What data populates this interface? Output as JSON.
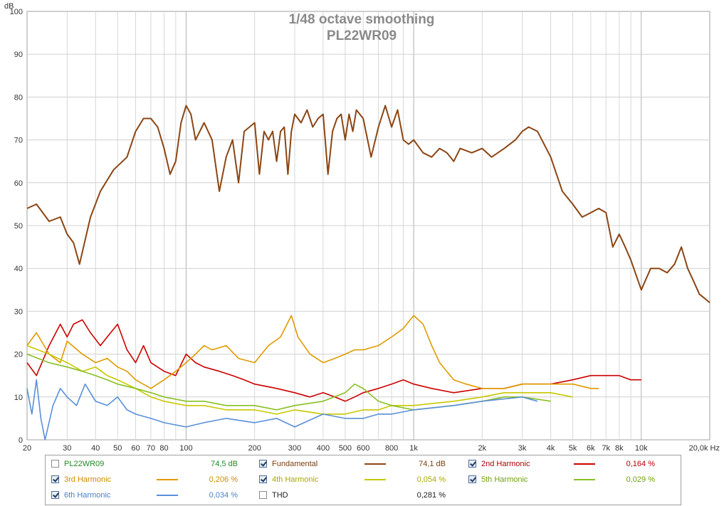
{
  "chart_data": {
    "type": "line",
    "title": "1/48 octave smoothing",
    "subtitle": "PL22WR09",
    "ylabel": "dB",
    "xunit": "Hz",
    "xscale": "log",
    "xlim": [
      20,
      20000
    ],
    "ylim": [
      0,
      100
    ],
    "grid": true,
    "x_tick_labels": [
      "20",
      "30",
      "40",
      "50",
      "60",
      "70",
      "80",
      "100",
      "200",
      "300",
      "400",
      "500",
      "600",
      "800",
      "1k",
      "2k",
      "3k",
      "4k",
      "5k",
      "6k",
      "7k",
      "8k",
      "10k",
      "20,0k Hz"
    ],
    "y_tick_labels": [
      "0",
      "10",
      "20",
      "30",
      "40",
      "50",
      "60",
      "70",
      "80",
      "90",
      "100"
    ],
    "series": [
      {
        "name": "Fundamental",
        "color": "#8b4513",
        "x": [
          20,
          22,
          25,
          28,
          30,
          32,
          34,
          38,
          42,
          48,
          55,
          60,
          65,
          70,
          75,
          80,
          85,
          90,
          95,
          100,
          105,
          110,
          120,
          130,
          140,
          150,
          160,
          170,
          180,
          200,
          210,
          220,
          230,
          240,
          250,
          260,
          270,
          280,
          290,
          300,
          320,
          340,
          360,
          380,
          400,
          420,
          440,
          460,
          480,
          500,
          520,
          540,
          560,
          600,
          650,
          700,
          750,
          800,
          850,
          900,
          950,
          1000,
          1100,
          1200,
          1300,
          1400,
          1500,
          1600,
          1800,
          2000,
          2200,
          2500,
          2800,
          3000,
          3200,
          3500,
          4000,
          4500,
          5000,
          5500,
          6000,
          6500,
          7000,
          7500,
          8000,
          8500,
          9000,
          10000,
          11000,
          12000,
          13000,
          14000,
          15000,
          16000,
          17000,
          18000,
          19000,
          20000
        ],
        "y": [
          54,
          55,
          51,
          52,
          48,
          46,
          41,
          52,
          58,
          63,
          66,
          72,
          75,
          75,
          73,
          68,
          62,
          65,
          74,
          78,
          76,
          70,
          74,
          70,
          58,
          66,
          70,
          60,
          72,
          74,
          62,
          72,
          70,
          72,
          65,
          72,
          73,
          62,
          72,
          76,
          74,
          77,
          73,
          75,
          76,
          62,
          72,
          75,
          76,
          70,
          76,
          72,
          77,
          75,
          66,
          73,
          78,
          73,
          77,
          70,
          69,
          70,
          67,
          66,
          68,
          67,
          65,
          68,
          67,
          68,
          66,
          68,
          70,
          72,
          73,
          72,
          66,
          58,
          55,
          52,
          53,
          54,
          53,
          45,
          48,
          45,
          42,
          35,
          40,
          40,
          39,
          41,
          45,
          40,
          37,
          34,
          33,
          32
        ]
      },
      {
        "name": "2nd Harmonic",
        "color": "#cc0000",
        "x": [
          20,
          22,
          25,
          28,
          30,
          32,
          35,
          38,
          42,
          45,
          50,
          55,
          60,
          65,
          70,
          80,
          90,
          100,
          110,
          120,
          140,
          160,
          180,
          200,
          250,
          300,
          350,
          400,
          450,
          500,
          550,
          600,
          700,
          800,
          900,
          1000,
          1200,
          1500,
          2000,
          2500,
          3000,
          4000,
          5000,
          6000,
          7000,
          8000,
          9000,
          10000
        ],
        "y": [
          18,
          15,
          22,
          27,
          24,
          27,
          28,
          25,
          22,
          24,
          27,
          21,
          18,
          22,
          18,
          16,
          15,
          20,
          18,
          17,
          16,
          15,
          14,
          13,
          12,
          11,
          10,
          11,
          10,
          9,
          10,
          11,
          12,
          13,
          14,
          13,
          12,
          11,
          12,
          12,
          13,
          13,
          14,
          15,
          15,
          15,
          14,
          14
        ]
      },
      {
        "name": "3rd Harmonic",
        "color": "#e09a00",
        "x": [
          20,
          22,
          25,
          28,
          30,
          35,
          40,
          45,
          50,
          55,
          60,
          70,
          80,
          90,
          100,
          110,
          120,
          130,
          150,
          170,
          200,
          230,
          260,
          290,
          310,
          350,
          400,
          450,
          500,
          550,
          600,
          700,
          800,
          900,
          1000,
          1100,
          1200,
          1300,
          1500,
          1700,
          2000,
          2500,
          3000,
          3500,
          4000,
          5000,
          6000,
          6500
        ],
        "y": [
          22,
          25,
          20,
          18,
          23,
          20,
          18,
          19,
          17,
          16,
          14,
          12,
          14,
          16,
          18,
          20,
          22,
          21,
          22,
          19,
          18,
          22,
          24,
          29,
          24,
          20,
          18,
          19,
          20,
          21,
          21,
          22,
          24,
          26,
          29,
          27,
          22,
          18,
          14,
          13,
          12,
          12,
          13,
          13,
          13,
          13,
          12,
          12
        ]
      },
      {
        "name": "4th Harmonic",
        "color": "#c8c800",
        "x": [
          20,
          25,
          30,
          35,
          40,
          45,
          50,
          60,
          70,
          80,
          100,
          120,
          150,
          200,
          250,
          300,
          400,
          500,
          600,
          700,
          800,
          1000,
          1500,
          2000,
          2500,
          3000,
          4000,
          5000
        ],
        "y": [
          22,
          20,
          18,
          16,
          17,
          15,
          14,
          12,
          10,
          9,
          8,
          8,
          7,
          7,
          6,
          7,
          6,
          6,
          7,
          7,
          8,
          8,
          9,
          10,
          11,
          11,
          11,
          10
        ]
      },
      {
        "name": "5th Harmonic",
        "color": "#88c020",
        "x": [
          20,
          25,
          30,
          35,
          40,
          45,
          50,
          60,
          70,
          80,
          100,
          120,
          150,
          200,
          250,
          300,
          400,
          500,
          550,
          600,
          700,
          800,
          1000,
          1500,
          2000,
          2500,
          3000,
          4000
        ],
        "y": [
          20,
          18,
          17,
          16,
          15,
          14,
          13,
          12,
          11,
          10,
          9,
          9,
          8,
          8,
          7,
          8,
          9,
          11,
          13,
          12,
          9,
          8,
          7,
          8,
          9,
          10,
          10,
          9
        ]
      },
      {
        "name": "6th Harmonic",
        "color": "#5a8fd8",
        "x": [
          20,
          21,
          22,
          23,
          24,
          26,
          28,
          30,
          33,
          36,
          40,
          45,
          50,
          55,
          60,
          70,
          80,
          100,
          120,
          150,
          200,
          250,
          300,
          400,
          500,
          600,
          700,
          800,
          1000,
          1500,
          2000,
          3000,
          3500
        ],
        "y": [
          12,
          6,
          14,
          5,
          0,
          8,
          12,
          10,
          8,
          13,
          9,
          8,
          10,
          7,
          6,
          5,
          4,
          3,
          4,
          5,
          4,
          5,
          3,
          6,
          5,
          5,
          6,
          6,
          7,
          8,
          9,
          10,
          9
        ]
      }
    ]
  },
  "legend": {
    "header": {
      "name": "PL22WR09",
      "value": "74,5 dB",
      "checked": false,
      "color": "#1f8a1f"
    },
    "items": [
      {
        "name": "Fundamental",
        "value": "74,1 dB",
        "checked": true,
        "color": "#8b4513",
        "text_color": "#7a3f0f"
      },
      {
        "name": "2nd Harmonic",
        "value": "0,164 %",
        "checked": true,
        "color": "#cc0000",
        "text_color": "#b00000"
      },
      {
        "name": "3rd Harmonic",
        "value": "0,206 %",
        "checked": true,
        "color": "#e09a00",
        "text_color": "#d08a00"
      },
      {
        "name": "4th Harmonic",
        "value": "0,054 %",
        "checked": true,
        "color": "#c8c800",
        "text_color": "#a8a800"
      },
      {
        "name": "5th Harmonic",
        "value": "0,029 %",
        "checked": true,
        "color": "#88c020",
        "text_color": "#70a010"
      },
      {
        "name": "6th Harmonic",
        "value": "0,034 %",
        "checked": true,
        "color": "#5a8fd8",
        "text_color": "#4a7fc8"
      },
      {
        "name": "THD",
        "value": "0,281 %",
        "checked": false,
        "color": "",
        "text_color": "#222222"
      }
    ]
  }
}
